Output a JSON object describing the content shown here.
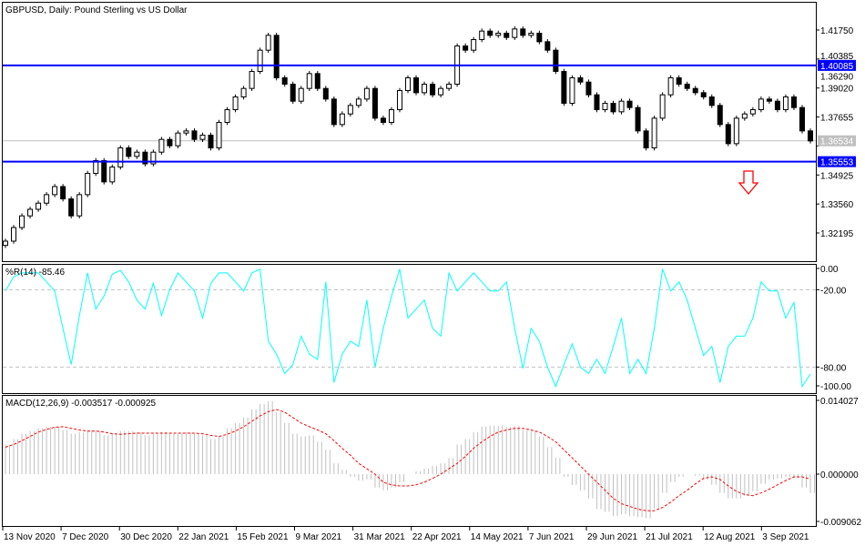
{
  "main_chart": {
    "title": "GBPUSD, Daily:  Pound Sterling vs US Dollar",
    "price_labels": [
      "1.41750",
      "1.40385",
      "1.39020",
      "1.37655",
      "1.36290",
      "1.34925",
      "1.33560",
      "1.32195"
    ],
    "price_values": [
      1.4175,
      1.40385,
      1.3902,
      1.37655,
      1.3629,
      1.34925,
      1.3356,
      1.32195
    ],
    "resistance_line": {
      "label": "1.40085",
      "value": 1.40085,
      "color": "#0000ff"
    },
    "support_line": {
      "label": "1.35553",
      "value": 1.35553,
      "color": "#0000ff"
    },
    "current_price": {
      "label": "1.36534",
      "value": 1.36534,
      "color": "#c0c0c0"
    },
    "signal_arrow": {
      "icon": "down-arrow-icon",
      "color": "#ff0000"
    },
    "closes": [
      1.3181,
      1.3245,
      1.33,
      1.3331,
      1.336,
      1.34,
      1.3438,
      1.338,
      1.33,
      1.34,
      1.35,
      1.356,
      1.346,
      1.353,
      1.362,
      1.358,
      1.36,
      1.3545,
      1.36,
      1.366,
      1.363,
      1.369,
      1.37,
      1.366,
      1.368,
      1.362,
      1.374,
      1.38,
      1.386,
      1.39,
      1.398,
      1.408,
      1.415,
      1.395,
      1.392,
      1.384,
      1.39,
      1.397,
      1.39,
      1.385,
      1.373,
      1.378,
      1.382,
      1.385,
      1.39,
      1.376,
      1.374,
      1.38,
      1.389,
      1.395,
      1.388,
      1.392,
      1.387,
      1.39,
      1.392,
      1.41,
      1.408,
      1.413,
      1.417,
      1.415,
      1.416,
      1.414,
      1.418,
      1.415,
      1.416,
      1.412,
      1.408,
      1.398,
      1.383,
      1.395,
      1.393,
      1.387,
      1.38,
      1.383,
      1.379,
      1.384,
      1.381,
      1.37,
      1.362,
      1.376,
      1.387,
      1.395,
      1.392,
      1.39,
      1.388,
      1.386,
      1.382,
      1.373,
      1.364,
      1.376,
      1.378,
      1.38,
      1.385,
      1.384,
      1.38,
      1.386,
      1.381,
      1.37,
      1.3653
    ]
  },
  "wpr_panel": {
    "title": "%R(14) -85.46",
    "levels": [
      {
        "label": "0.00",
        "value": 0
      },
      {
        "label": "-20.00",
        "value": -20
      },
      {
        "label": "-80.00",
        "value": -80
      },
      {
        "label": "-100.00",
        "value": -100
      }
    ],
    "color": "#00ffff",
    "values": [
      -21,
      -10,
      -7,
      -7,
      -7,
      -14,
      -21,
      -50,
      -78,
      -40,
      -7,
      -35,
      -25,
      -8,
      -5,
      -14,
      -28,
      -35,
      -15,
      -40,
      -20,
      -7,
      -14,
      -21,
      -42,
      -15,
      -7,
      -7,
      -14,
      -21,
      -7,
      -4,
      -60,
      -70,
      -85,
      -78,
      -56,
      -70,
      -74,
      -14,
      -92,
      -70,
      -60,
      -64,
      -28,
      -80,
      -50,
      -25,
      -4,
      -42,
      -35,
      -28,
      -50,
      -56,
      -7,
      -21,
      -14,
      -7,
      -14,
      -21,
      -21,
      -14,
      -50,
      -81,
      -50,
      -60,
      -80,
      -95,
      -78,
      -62,
      -80,
      -85,
      -74,
      -85,
      -64,
      -42,
      -85,
      -74,
      -85,
      -50,
      -4,
      -21,
      -14,
      -28,
      -50,
      -71,
      -64,
      -92,
      -64,
      -56,
      -56,
      -42,
      -14,
      -21,
      -21,
      -42,
      -30,
      -95,
      -85.46
    ]
  },
  "macd_panel": {
    "title": "MACD(12,26,9) -0.003517 -0.000925",
    "scale_labels": [
      {
        "label": "0.014027",
        "value": 0.014027
      },
      {
        "label": "0.000000",
        "value": 0
      },
      {
        "label": "-0.009062",
        "value": -0.009062
      }
    ],
    "histogram_color": "#c0c0c0",
    "signal_color": "#ff0000",
    "macd": [
      0.0055,
      0.0065,
      0.0075,
      0.008,
      0.0085,
      0.0088,
      0.0088,
      0.0082,
      0.0075,
      0.0078,
      0.0082,
      0.008,
      0.0072,
      0.0075,
      0.008,
      0.008,
      0.0078,
      0.0072,
      0.0075,
      0.0078,
      0.0075,
      0.0075,
      0.0078,
      0.0075,
      0.0072,
      0.0065,
      0.007,
      0.0085,
      0.0095,
      0.0105,
      0.012,
      0.013,
      0.0135,
      0.0115,
      0.0095,
      0.0075,
      0.007,
      0.0072,
      0.006,
      0.0045,
      0.002,
      0.0008,
      -0.0005,
      -0.0012,
      -0.001,
      -0.0025,
      -0.003,
      -0.0025,
      -0.0015,
      0.0,
      0.0005,
      0.001,
      0.0015,
      0.002,
      0.003,
      0.0055,
      0.0065,
      0.0078,
      0.0088,
      0.009,
      0.009,
      0.0088,
      0.009,
      0.0082,
      0.008,
      0.007,
      0.005,
      0.003,
      -0.0005,
      -0.002,
      -0.003,
      -0.0045,
      -0.0065,
      -0.007,
      -0.0078,
      -0.0075,
      -0.0078,
      -0.008,
      -0.0082,
      -0.0065,
      -0.0035,
      -0.0015,
      -0.0005,
      0.0,
      -0.0003,
      -0.001,
      -0.002,
      -0.0035,
      -0.0045,
      -0.0045,
      -0.004,
      -0.0032,
      -0.0018,
      -0.001,
      -0.0008,
      -0.0005,
      -0.0008,
      -0.0025,
      -0.003517
    ],
    "signal": [
      0.005,
      0.0055,
      0.0062,
      0.007,
      0.0078,
      0.0083,
      0.0087,
      0.0088,
      0.0085,
      0.0082,
      0.008,
      0.008,
      0.0078,
      0.0075,
      0.0074,
      0.0075,
      0.0076,
      0.0076,
      0.0076,
      0.0076,
      0.0076,
      0.0076,
      0.0076,
      0.0076,
      0.0075,
      0.0072,
      0.007,
      0.0074,
      0.008,
      0.0088,
      0.0098,
      0.0108,
      0.0116,
      0.012,
      0.0115,
      0.0105,
      0.0095,
      0.0088,
      0.0082,
      0.0075,
      0.0062,
      0.0048,
      0.0035,
      0.002,
      0.001,
      0.0,
      -0.0015,
      -0.002,
      -0.0022,
      -0.0022,
      -0.002,
      -0.0015,
      -0.0008,
      0.0,
      0.001,
      0.002,
      0.0033,
      0.0048,
      0.006,
      0.007,
      0.0078,
      0.0082,
      0.0085,
      0.0085,
      0.0082,
      0.0078,
      0.007,
      0.006,
      0.0045,
      0.003,
      0.0015,
      0.0,
      -0.0015,
      -0.003,
      -0.0045,
      -0.0055,
      -0.006,
      -0.0065,
      -0.0068,
      -0.0068,
      -0.0062,
      -0.0052,
      -0.004,
      -0.003,
      -0.0018,
      -0.0008,
      -0.0005,
      -0.001,
      -0.0022,
      -0.0032,
      -0.0038,
      -0.004,
      -0.0035,
      -0.0028,
      -0.002,
      -0.0012,
      -0.0005,
      -0.0005,
      -0.000925
    ]
  },
  "date_axis": [
    "13 Nov 2020",
    "7 Dec 2020",
    "30 Dec 2020",
    "22 Jan 2021",
    "15 Feb 2021",
    "9 Mar 2021",
    "31 Mar 2021",
    "22 Apr 2021",
    "14 May 2021",
    "7 Jun 2021",
    "29 Jun 2021",
    "21 Jul 2021",
    "12 Aug 2021",
    "3 Sep 2021"
  ]
}
